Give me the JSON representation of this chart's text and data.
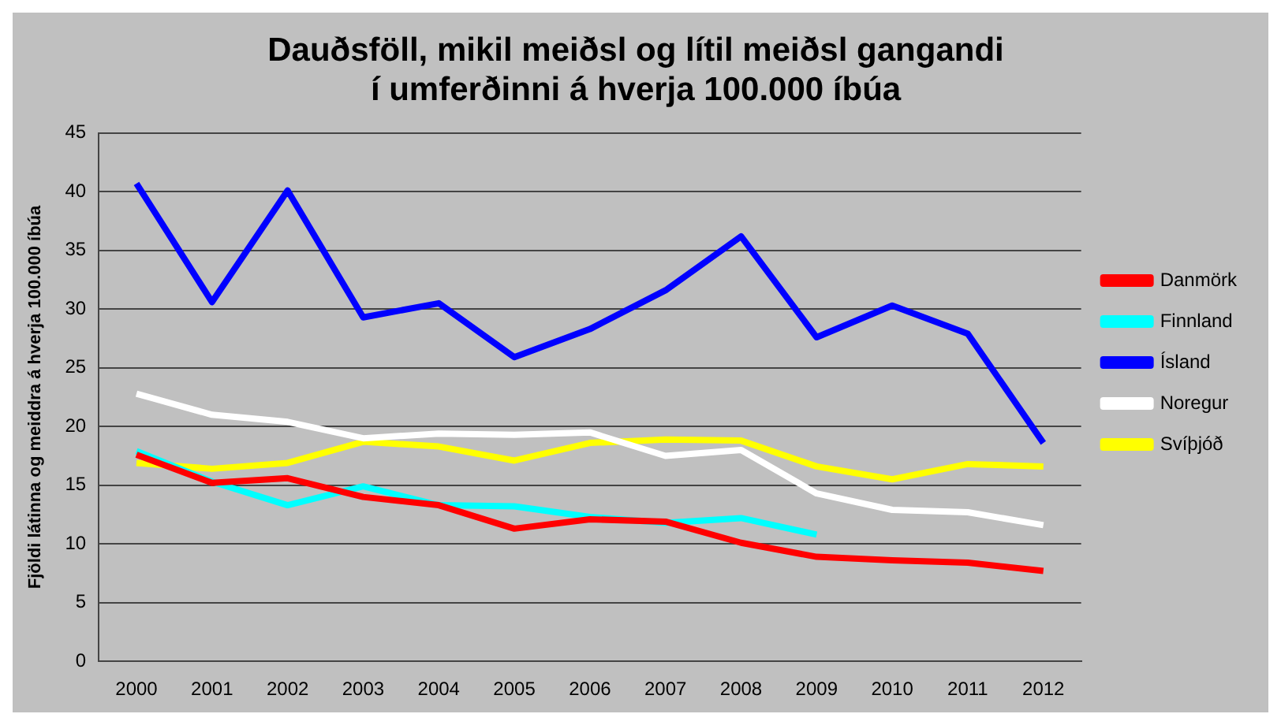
{
  "chart_data": {
    "type": "line",
    "title": "Dauðsföll, mikil meiðsl og lítil meiðsl gangandi\ní umferðinni á hverja 100.000 íbúa",
    "ylabel": "Fjöldi látinna og meiddra á hverja 100.000 íbúa",
    "categories": [
      "2000",
      "2001",
      "2002",
      "2003",
      "2004",
      "2005",
      "2006",
      "2007",
      "2008",
      "2009",
      "2010",
      "2011",
      "2012"
    ],
    "ylim": [
      0,
      45
    ],
    "yticks": [
      0,
      5,
      10,
      15,
      20,
      25,
      30,
      35,
      40,
      45
    ],
    "grid": "y",
    "legend": "right",
    "marker": "none",
    "line_style": "solid",
    "series": [
      {
        "name": "Danmörk",
        "color": "#ff0000",
        "values": [
          17.6,
          15.2,
          15.6,
          14.0,
          13.3,
          11.3,
          12.1,
          11.9,
          10.1,
          8.9,
          8.6,
          8.4,
          7.7
        ]
      },
      {
        "name": "Finnland",
        "color": "#00ffff",
        "values": [
          17.9,
          15.3,
          13.3,
          14.9,
          13.3,
          13.2,
          12.3,
          11.8,
          12.2,
          10.8,
          null,
          null,
          null
        ]
      },
      {
        "name": "Ísland",
        "color": "#0000ff",
        "values": [
          40.7,
          30.6,
          40.1,
          29.3,
          30.5,
          25.9,
          28.3,
          31.6,
          36.2,
          27.6,
          30.3,
          27.9,
          18.6
        ]
      },
      {
        "name": "Noregur",
        "color": "#ffffff",
        "values": [
          22.8,
          21.0,
          20.4,
          19.0,
          19.4,
          19.3,
          19.5,
          17.5,
          18.0,
          14.3,
          12.9,
          12.7,
          11.6
        ]
      },
      {
        "name": "Svíþjóð",
        "color": "#ffff00",
        "values": [
          16.9,
          16.4,
          16.9,
          18.7,
          18.3,
          17.1,
          18.6,
          18.9,
          18.8,
          16.6,
          15.5,
          16.8,
          16.6
        ]
      }
    ]
  }
}
